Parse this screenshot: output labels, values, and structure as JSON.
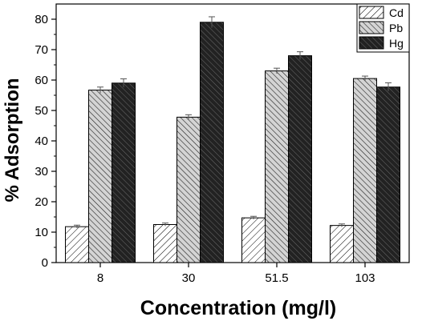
{
  "chart_data": {
    "type": "bar",
    "title": "",
    "xlabel": "Concentration (mg/l)",
    "ylabel": "% Adsorption",
    "categories": [
      "8",
      "30",
      "51.5",
      "103"
    ],
    "ylim": [
      0,
      85
    ],
    "yticks": [
      "0",
      "10",
      "20",
      "30",
      "40",
      "50",
      "60",
      "70",
      "80"
    ],
    "grid": false,
    "legend_position": "top-right",
    "series": [
      {
        "name": "Cd",
        "values": [
          11.8,
          12.5,
          14.7,
          12.2
        ],
        "errors": [
          0.5,
          0.5,
          0.5,
          0.5
        ],
        "fill": "white",
        "pattern": "hatch-light"
      },
      {
        "name": "Pb",
        "values": [
          56.7,
          47.8,
          63.0,
          60.5
        ],
        "errors": [
          1.0,
          0.8,
          0.9,
          0.8
        ],
        "fill": "#c8c8c8",
        "pattern": "hatch-gray"
      },
      {
        "name": "Hg",
        "values": [
          59.0,
          79.0,
          68.0,
          57.7
        ],
        "errors": [
          1.4,
          1.8,
          1.3,
          1.4
        ],
        "fill": "#3a3a3a",
        "pattern": "hatch-dark"
      }
    ]
  }
}
